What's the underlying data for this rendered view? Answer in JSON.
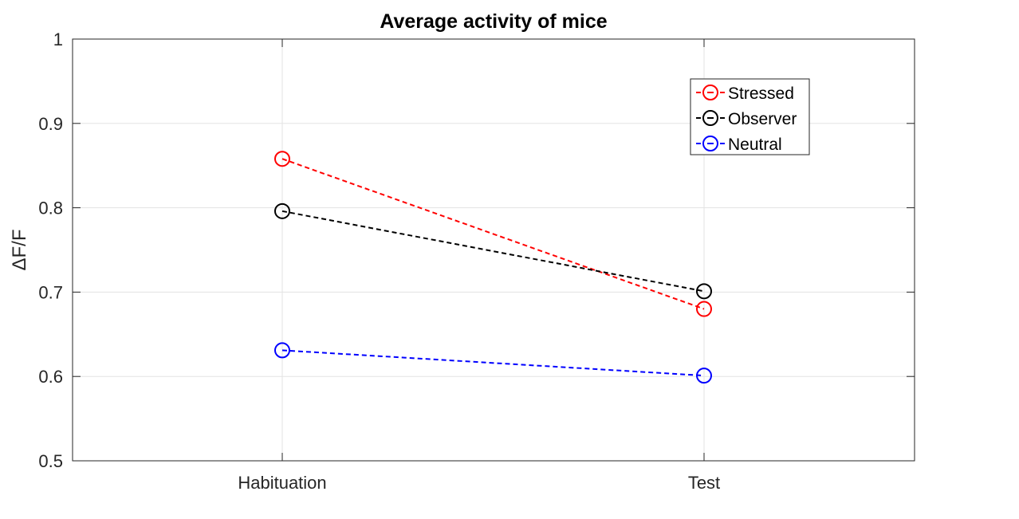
{
  "chart_data": {
    "type": "line",
    "title": "Average activity of mice",
    "xlabel": "",
    "ylabel": "ΔF/F",
    "categories": [
      "Habituation",
      "Test"
    ],
    "ylim": [
      0.5,
      1
    ],
    "yticks": [
      0.5,
      0.6,
      0.7,
      0.8,
      0.9,
      1
    ],
    "ytick_labels": [
      "0.5",
      "0.6",
      "0.7",
      "0.8",
      "0.9",
      "1"
    ],
    "grid": true,
    "legend_position": "top-right",
    "series": [
      {
        "name": "Stressed",
        "values": [
          0.858,
          0.68
        ],
        "color": "#ff0000",
        "line_style": "dashed",
        "marker": "circle"
      },
      {
        "name": "Observer",
        "values": [
          0.796,
          0.701
        ],
        "color": "#000000",
        "line_style": "dashed",
        "marker": "circle"
      },
      {
        "name": "Neutral",
        "values": [
          0.631,
          0.601
        ],
        "color": "#0000ff",
        "line_style": "dashed",
        "marker": "circle"
      }
    ]
  }
}
